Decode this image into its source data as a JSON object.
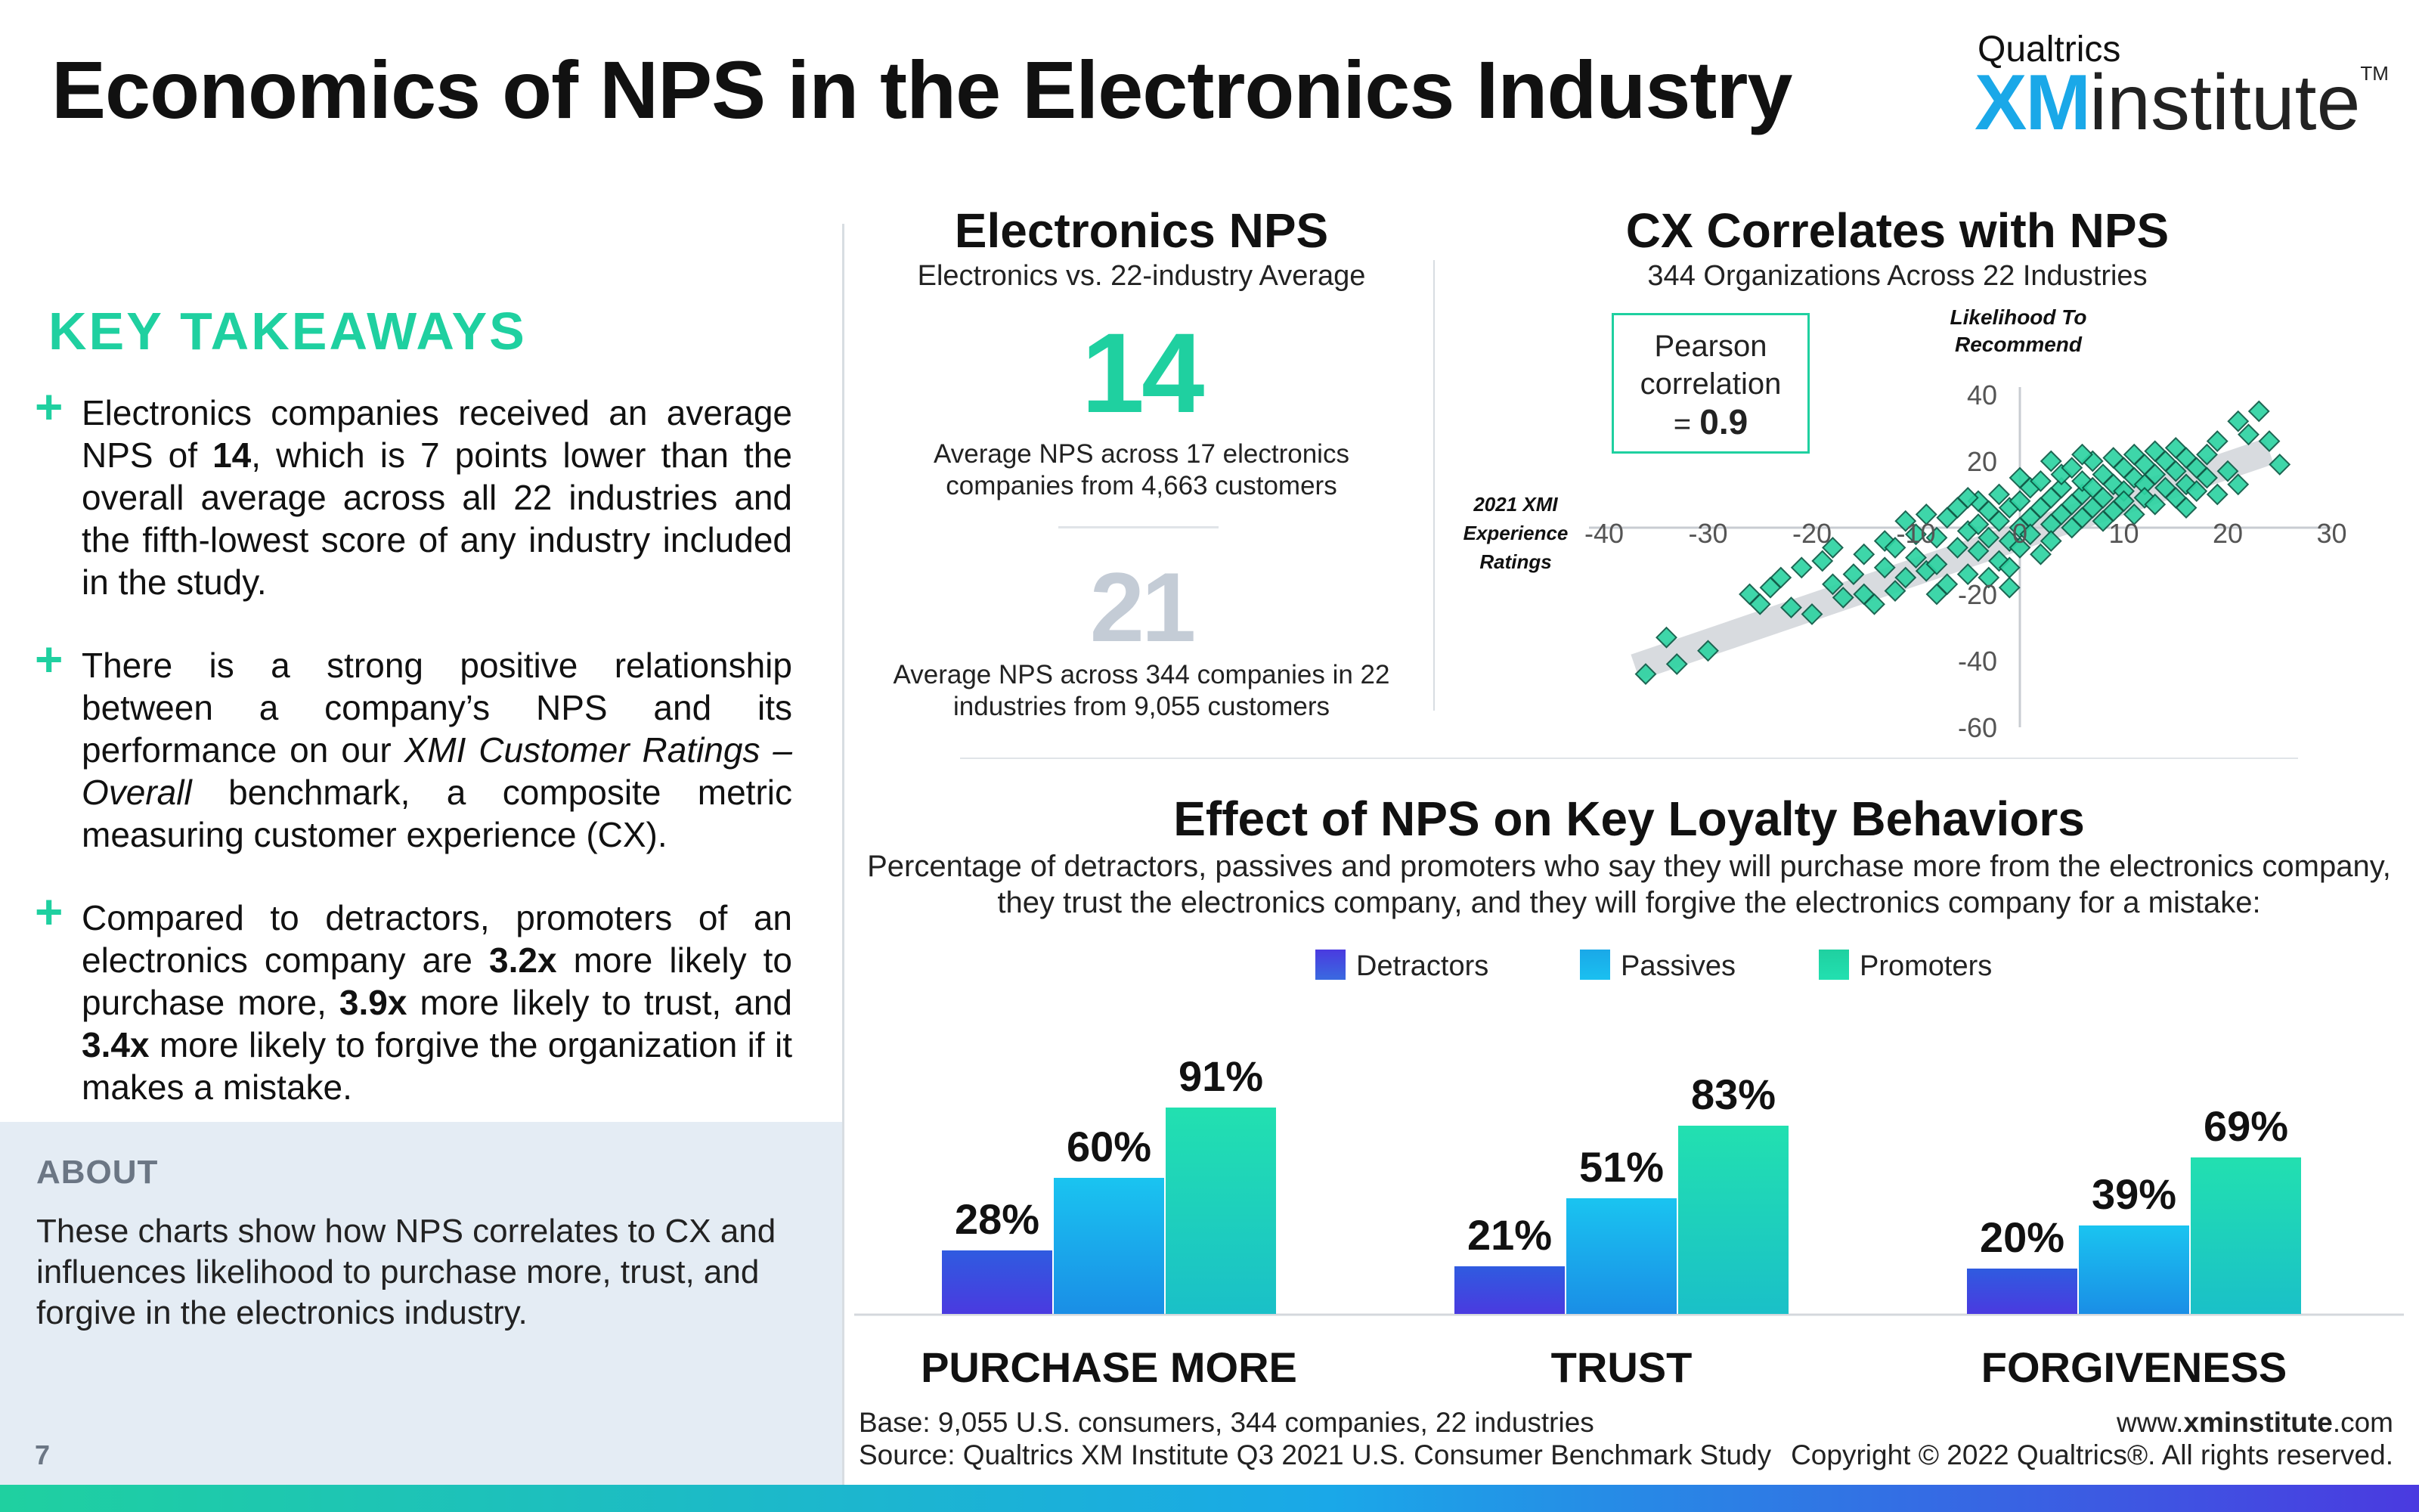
{
  "title": "Economics of NPS in the Electronics Industry",
  "logo": {
    "top": "Qualtrics",
    "main_bold": "XM",
    "main_rest": "institute",
    "tm": "TM"
  },
  "takeaways": {
    "heading": "KEY TAKEAWAYS",
    "items": [
      {
        "a": "Electronics companies received an average NPS of ",
        "b": "14",
        "c": ", which is 7 points lower than the overall average across all 22 industries and the fifth-lowest score of any industry included in the study."
      },
      {
        "a": "There is a strong positive relationship between a company’s NPS and its performance on our ",
        "i1": "XMI Customer Ratings – Overall",
        "c": " benchmark, a composite metric measuring customer experience (CX)."
      },
      {
        "a": "Compared to detractors, promoters of an electronics company are ",
        "b1": "3.2x",
        "m1": " more likely to purchase more, ",
        "b2": "3.9x",
        "m2": " more likely to trust, and ",
        "b3": "3.4x",
        "m3": " more likely to forgive the organization if it makes a mistake."
      }
    ]
  },
  "about": {
    "heading": "ABOUT",
    "text": "These charts show how NPS correlates to CX and influences likelihood to purchase more, trust, and forgive in the electronics industry."
  },
  "page_number": "7",
  "nps_panel": {
    "title": "Electronics NPS",
    "subtitle": "Electronics vs. 22-industry Average",
    "value": "14",
    "value_caption": "Average NPS across 17 electronics companies from 4,663 customers",
    "average": "21",
    "average_caption": "Average NPS across 344 companies in 22 industries from 9,055 customers"
  },
  "cx_panel": {
    "title": "CX Correlates with NPS",
    "subtitle": "344 Organizations Across 22 Industries",
    "pearson_label": "Pearson correlation",
    "pearson_eq": "= ",
    "pearson_value": "0.9",
    "y_label": "Likelihood To Recommend",
    "x_label": "2021 XMI Experience Ratings"
  },
  "loyalty_panel": {
    "title": "Effect of NPS on Key Loyalty Behaviors",
    "subtitle": "Percentage of detractors, passives and promoters who say they will purchase more from the electronics company, they trust the electronics company, and they will forgive the electronics company for a mistake:"
  },
  "colors": {
    "accent": "#1fd0a0",
    "detractors": "#4a3ae0",
    "passives": "#1aa8e8",
    "promoters": "#1fd0a0",
    "scatter_point": "#2ed3a2",
    "band": "#c8ccd2"
  },
  "chart_data": [
    {
      "type": "scatter",
      "title": "CX Correlates with NPS",
      "xlabel": "2021 XMI Experience Ratings",
      "ylabel": "Likelihood To Recommend",
      "xlim": [
        -40,
        30
      ],
      "ylim": [
        -60,
        40
      ],
      "x_ticks": [
        -40,
        -30,
        -20,
        -10,
        0,
        10,
        20,
        30
      ],
      "y_ticks": [
        40,
        20,
        0,
        -20,
        -40,
        -60
      ],
      "pearson_r": 0.9,
      "trend_band": {
        "from": [
          -37,
          -42
        ],
        "to": [
          24,
          23
        ]
      },
      "points": [
        [
          -36,
          -44
        ],
        [
          -34,
          -33
        ],
        [
          -33,
          -41
        ],
        [
          -30,
          -37
        ],
        [
          -26,
          -20
        ],
        [
          -25,
          -23
        ],
        [
          -24,
          -18
        ],
        [
          -23,
          -15
        ],
        [
          -22,
          -24
        ],
        [
          -21,
          -12
        ],
        [
          -20,
          -26
        ],
        [
          -19,
          -10
        ],
        [
          -18,
          -17
        ],
        [
          -17,
          -21
        ],
        [
          -16,
          -14
        ],
        [
          -15,
          -8
        ],
        [
          -14,
          -23
        ],
        [
          -13,
          -4
        ],
        [
          -13,
          -12
        ],
        [
          -12,
          -19
        ],
        [
          -12,
          -6
        ],
        [
          -11,
          2
        ],
        [
          -11,
          -15
        ],
        [
          -10,
          -9
        ],
        [
          -10,
          -2
        ],
        [
          -9,
          -13
        ],
        [
          -9,
          4
        ],
        [
          -8,
          -3
        ],
        [
          -8,
          -11
        ],
        [
          -7,
          3
        ],
        [
          -7,
          -17
        ],
        [
          -6,
          -6
        ],
        [
          -6,
          6
        ],
        [
          -5,
          -1
        ],
        [
          -5,
          -14
        ],
        [
          -4,
          1
        ],
        [
          -4,
          8
        ],
        [
          -4,
          -7
        ],
        [
          -3,
          -3
        ],
        [
          -3,
          5
        ],
        [
          -2,
          -10
        ],
        [
          -2,
          2
        ],
        [
          -2,
          10
        ],
        [
          -1,
          -4
        ],
        [
          -1,
          6
        ],
        [
          -1,
          -12
        ],
        [
          0,
          0
        ],
        [
          0,
          8
        ],
        [
          0,
          -6
        ],
        [
          1,
          3
        ],
        [
          1,
          12
        ],
        [
          1,
          -2
        ],
        [
          2,
          6
        ],
        [
          2,
          -8
        ],
        [
          2,
          14
        ],
        [
          3,
          1
        ],
        [
          3,
          9
        ],
        [
          3,
          -4
        ],
        [
          4,
          4
        ],
        [
          4,
          12
        ],
        [
          4,
          16
        ],
        [
          5,
          7
        ],
        [
          5,
          0
        ],
        [
          5,
          18
        ],
        [
          6,
          10
        ],
        [
          6,
          3
        ],
        [
          6,
          14
        ],
        [
          7,
          6
        ],
        [
          7,
          20
        ],
        [
          7,
          12
        ],
        [
          8,
          9
        ],
        [
          8,
          2
        ],
        [
          8,
          16
        ],
        [
          9,
          13
        ],
        [
          9,
          21
        ],
        [
          9,
          5
        ],
        [
          10,
          11
        ],
        [
          10,
          18
        ],
        [
          10,
          8
        ],
        [
          11,
          15
        ],
        [
          11,
          22
        ],
        [
          11,
          4
        ],
        [
          12,
          13
        ],
        [
          12,
          19
        ],
        [
          12,
          9
        ],
        [
          13,
          16
        ],
        [
          13,
          23
        ],
        [
          13,
          7
        ],
        [
          14,
          12
        ],
        [
          14,
          20
        ],
        [
          15,
          17
        ],
        [
          15,
          9
        ],
        [
          15,
          24
        ],
        [
          16,
          13
        ],
        [
          16,
          21
        ],
        [
          16,
          6
        ],
        [
          17,
          18
        ],
        [
          17,
          11
        ],
        [
          18,
          15
        ],
        [
          18,
          22
        ],
        [
          19,
          10
        ],
        [
          19,
          26
        ],
        [
          20,
          17
        ],
        [
          21,
          13
        ],
        [
          21,
          32
        ],
        [
          22,
          28
        ],
        [
          23,
          35
        ],
        [
          24,
          26
        ],
        [
          25,
          19
        ],
        [
          -5,
          9
        ],
        [
          -3,
          -15
        ],
        [
          -15,
          -20
        ],
        [
          -18,
          -6
        ],
        [
          3,
          20
        ],
        [
          6,
          22
        ],
        [
          -8,
          -20
        ],
        [
          0,
          15
        ],
        [
          -1,
          -18
        ]
      ]
    },
    {
      "type": "bar",
      "title": "Effect of NPS on Key Loyalty Behaviors",
      "categories": [
        "PURCHASE MORE",
        "TRUST",
        "FORGIVENESS"
      ],
      "series": [
        {
          "name": "Detractors",
          "values": [
            28,
            21,
            20
          ]
        },
        {
          "name": "Passives",
          "values": [
            60,
            51,
            39
          ]
        },
        {
          "name": "Promoters",
          "values": [
            91,
            83,
            69
          ]
        }
      ],
      "ylim": [
        0,
        100
      ],
      "value_suffix": "%",
      "legend_position": "top-center"
    }
  ],
  "footer": {
    "base": "Base: 9,055 U.S. consumers, 344 companies, 22 industries",
    "source": "Source: Qualtrics XM Institute Q3 2021 U.S. Consumer Benchmark Study",
    "site_pre": "www.",
    "site_bold": "xminstitute",
    "site_post": ".com",
    "copyright": "Copyright © 2022 Qualtrics®. All rights reserved."
  }
}
